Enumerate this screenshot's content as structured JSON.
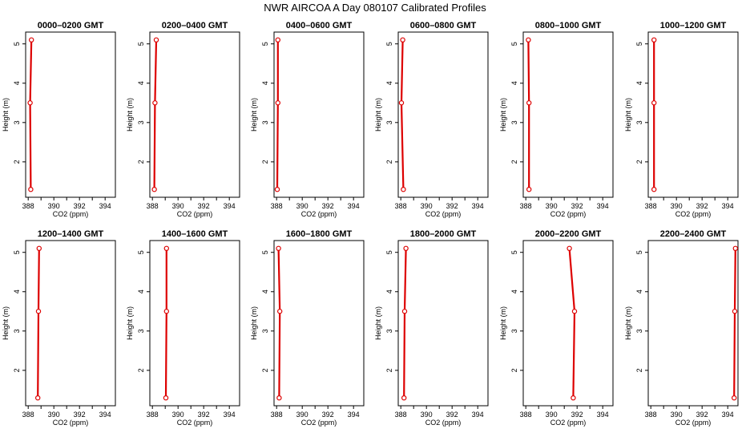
{
  "page": {
    "title": "NWR AIRCOA A  Day 080107  Calibrated Profiles"
  },
  "colors": {
    "profile": "#dd0000",
    "axis": "#000000",
    "background": "#ffffff"
  },
  "chart_data": [
    {
      "type": "line",
      "title": "0000–0200 GMT",
      "xlabel": "CO2 (ppm)",
      "ylabel": "Height (m)",
      "xlim": [
        387.8,
        394.8
      ],
      "ylim": [
        1.1,
        5.3
      ],
      "xticks": [
        388,
        390,
        392,
        394
      ],
      "yticks": [
        2,
        3,
        4,
        5
      ],
      "series": [
        {
          "x": [
            388.2,
            388.15,
            388.25
          ],
          "y": [
            1.3,
            3.5,
            5.1
          ]
        }
      ]
    },
    {
      "type": "line",
      "title": "0200–0400 GMT",
      "xlabel": "CO2 (ppm)",
      "ylabel": "Height (m)",
      "xlim": [
        387.8,
        394.8
      ],
      "ylim": [
        1.1,
        5.3
      ],
      "xticks": [
        388,
        390,
        392,
        394
      ],
      "yticks": [
        2,
        3,
        4,
        5
      ],
      "series": [
        {
          "x": [
            388.15,
            388.2,
            388.3
          ],
          "y": [
            1.3,
            3.5,
            5.1
          ]
        }
      ]
    },
    {
      "type": "line",
      "title": "0400–0600 GMT",
      "xlabel": "CO2 (ppm)",
      "ylabel": "Height (m)",
      "xlim": [
        387.8,
        394.8
      ],
      "ylim": [
        1.1,
        5.3
      ],
      "xticks": [
        388,
        390,
        392,
        394
      ],
      "yticks": [
        2,
        3,
        4,
        5
      ],
      "series": [
        {
          "x": [
            388.05,
            388.1,
            388.1
          ],
          "y": [
            1.3,
            3.5,
            5.1
          ]
        }
      ]
    },
    {
      "type": "line",
      "title": "0600–0800 GMT",
      "xlabel": "CO2 (ppm)",
      "ylabel": "Height (m)",
      "xlim": [
        387.8,
        394.8
      ],
      "ylim": [
        1.1,
        5.3
      ],
      "xticks": [
        388,
        390,
        392,
        394
      ],
      "yticks": [
        2,
        3,
        4,
        5
      ],
      "series": [
        {
          "x": [
            388.2,
            388.05,
            388.15
          ],
          "y": [
            1.3,
            3.5,
            5.1
          ]
        }
      ]
    },
    {
      "type": "line",
      "title": "0800–1000 GMT",
      "xlabel": "CO2 (ppm)",
      "ylabel": "Height (m)",
      "xlim": [
        387.8,
        394.8
      ],
      "ylim": [
        1.1,
        5.3
      ],
      "xticks": [
        388,
        390,
        392,
        394
      ],
      "yticks": [
        2,
        3,
        4,
        5
      ],
      "series": [
        {
          "x": [
            388.25,
            388.25,
            388.2
          ],
          "y": [
            1.3,
            3.5,
            5.1
          ]
        }
      ]
    },
    {
      "type": "line",
      "title": "1000–1200 GMT",
      "xlabel": "CO2 (ppm)",
      "ylabel": "Height (m)",
      "xlim": [
        387.8,
        394.8
      ],
      "ylim": [
        1.1,
        5.3
      ],
      "xticks": [
        388,
        390,
        392,
        394
      ],
      "yticks": [
        2,
        3,
        4,
        5
      ],
      "series": [
        {
          "x": [
            388.25,
            388.25,
            388.25
          ],
          "y": [
            1.3,
            3.5,
            5.1
          ]
        }
      ]
    },
    {
      "type": "line",
      "title": "1200–1400 GMT",
      "xlabel": "CO2 (ppm)",
      "ylabel": "Height (m)",
      "xlim": [
        387.8,
        394.8
      ],
      "ylim": [
        1.1,
        5.3
      ],
      "xticks": [
        388,
        390,
        392,
        394
      ],
      "yticks": [
        2,
        3,
        4,
        5
      ],
      "series": [
        {
          "x": [
            388.75,
            388.8,
            388.85
          ],
          "y": [
            1.3,
            3.5,
            5.1
          ]
        }
      ]
    },
    {
      "type": "line",
      "title": "1400–1600 GMT",
      "xlabel": "CO2 (ppm)",
      "ylabel": "Height (m)",
      "xlim": [
        387.8,
        394.8
      ],
      "ylim": [
        1.1,
        5.3
      ],
      "xticks": [
        388,
        390,
        392,
        394
      ],
      "yticks": [
        2,
        3,
        4,
        5
      ],
      "series": [
        {
          "x": [
            389.05,
            389.1,
            389.1
          ],
          "y": [
            1.3,
            3.5,
            5.1
          ]
        }
      ]
    },
    {
      "type": "line",
      "title": "1600–1800 GMT",
      "xlabel": "CO2 (ppm)",
      "ylabel": "Height (m)",
      "xlim": [
        387.8,
        394.8
      ],
      "ylim": [
        1.1,
        5.3
      ],
      "xticks": [
        388,
        390,
        392,
        394
      ],
      "yticks": [
        2,
        3,
        4,
        5
      ],
      "series": [
        {
          "x": [
            388.2,
            388.25,
            388.15
          ],
          "y": [
            1.3,
            3.5,
            5.1
          ]
        }
      ]
    },
    {
      "type": "line",
      "title": "1800–2000 GMT",
      "xlabel": "CO2 (ppm)",
      "ylabel": "Height (m)",
      "xlim": [
        387.8,
        394.8
      ],
      "ylim": [
        1.1,
        5.3
      ],
      "xticks": [
        388,
        390,
        392,
        394
      ],
      "yticks": [
        2,
        3,
        4,
        5
      ],
      "series": [
        {
          "x": [
            388.25,
            388.3,
            388.4
          ],
          "y": [
            1.3,
            3.5,
            5.1
          ]
        }
      ]
    },
    {
      "type": "line",
      "title": "2000–2200 GMT",
      "xlabel": "CO2 (ppm)",
      "ylabel": "Height (m)",
      "xlim": [
        387.8,
        394.8
      ],
      "ylim": [
        1.1,
        5.3
      ],
      "xticks": [
        388,
        390,
        392,
        394
      ],
      "yticks": [
        2,
        3,
        4,
        5
      ],
      "series": [
        {
          "x": [
            391.7,
            391.8,
            391.4
          ],
          "y": [
            1.3,
            3.5,
            5.1
          ]
        }
      ]
    },
    {
      "type": "line",
      "title": "2200–2400 GMT",
      "xlabel": "CO2 (ppm)",
      "ylabel": "Height (m)",
      "xlim": [
        387.8,
        394.8
      ],
      "ylim": [
        1.1,
        5.3
      ],
      "xticks": [
        388,
        390,
        392,
        394
      ],
      "yticks": [
        2,
        3,
        4,
        5
      ],
      "series": [
        {
          "x": [
            394.5,
            394.55,
            394.6
          ],
          "y": [
            1.3,
            3.5,
            5.1
          ]
        }
      ]
    }
  ]
}
